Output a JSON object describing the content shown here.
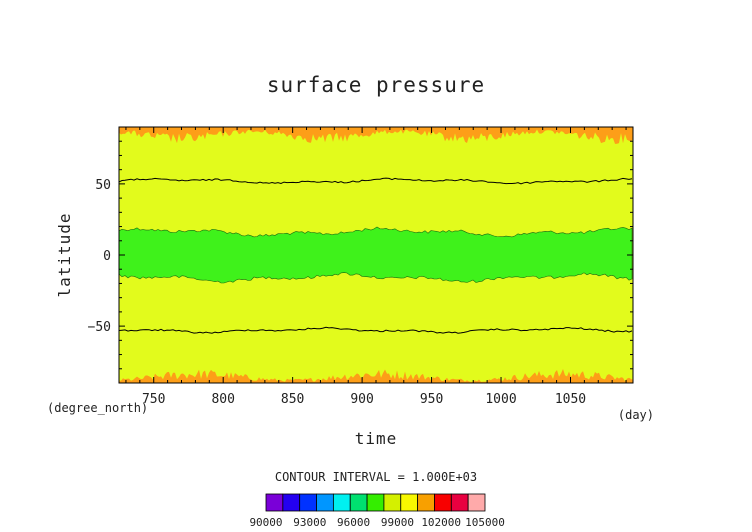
{
  "chart_data": {
    "type": "heatmap",
    "subtype": "filled-contour",
    "title": "surface pressure",
    "xlabel": "time",
    "ylabel": "latitude",
    "x_unit": "(day)",
    "y_unit": "(degree_north)",
    "xlim": [
      725,
      1095
    ],
    "ylim": [
      -90,
      90
    ],
    "x_ticks": [
      "750",
      "800",
      "850",
      "900",
      "950",
      "1000",
      "1050"
    ],
    "x_tick_values": [
      750,
      800,
      850,
      900,
      950,
      1000,
      1050
    ],
    "y_ticks": [
      "50",
      "0",
      "−50"
    ],
    "y_tick_values": [
      50,
      0,
      -50
    ],
    "contour_interval_text": "CONTOUR INTERVAL = 1.000E+03",
    "colorbar": {
      "levels": [
        90000,
        93000,
        96000,
        99000,
        102000,
        105000
      ],
      "labels": [
        "90000",
        "93000",
        "96000",
        "99000",
        "102000",
        "105000"
      ],
      "colors": [
        "#7a00d8",
        "#2400f0",
        "#0032ff",
        "#0096ff",
        "#00f0f0",
        "#00e070",
        "#34ee00",
        "#d4f000",
        "#f8f800",
        "#f8a000",
        "#f80000",
        "#e80040",
        "#ffaaaa"
      ]
    },
    "regions": [
      {
        "range": "100000-101000",
        "color": "#e2fb1c",
        "lat_bands": [
          [
            -90,
            90
          ]
        ]
      },
      {
        "range": "99000-100000",
        "color": "#3ff21b",
        "lat_bands": [
          [
            -16,
            16
          ]
        ]
      },
      {
        "range": "101000-102000",
        "color": "#fd9e18",
        "lat_bands": [
          [
            78,
            90
          ],
          [
            -90,
            -80
          ]
        ]
      }
    ],
    "contour_lines": [
      {
        "color": "#000000",
        "mean_lat": 52
      },
      {
        "color": "#000000",
        "mean_lat": -53
      }
    ],
    "grid": false
  }
}
